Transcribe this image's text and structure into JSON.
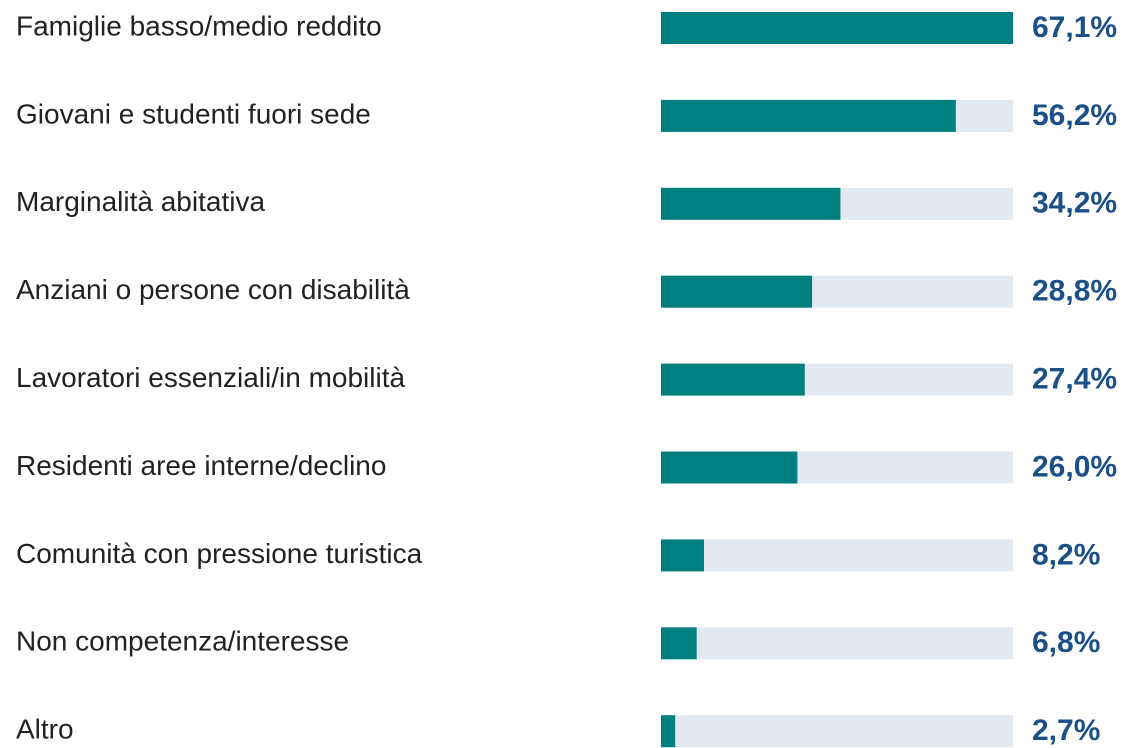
{
  "chart_data": {
    "type": "bar",
    "orientation": "horizontal",
    "categories": [
      "Famiglie basso/medio reddito",
      "Giovani e studenti fuori sede",
      "Marginalità abitativa",
      "Anziani o persone con disabilità",
      "Lavoratori essenziali/in mobilità",
      "Residenti aree interne/declino",
      "Comunità con pressione turistica",
      "Non competenza/interesse",
      "Altro"
    ],
    "values": [
      67.1,
      56.2,
      34.2,
      28.8,
      27.4,
      26.0,
      8.2,
      6.8,
      2.7
    ],
    "value_labels": [
      "67,1%",
      "56,2%",
      "34,2%",
      "28,8%",
      "27,4%",
      "26,0%",
      "8,2%",
      "6,8%",
      "2,7%"
    ],
    "color": "#007f80",
    "track_color": "#e3e8f0"
  }
}
